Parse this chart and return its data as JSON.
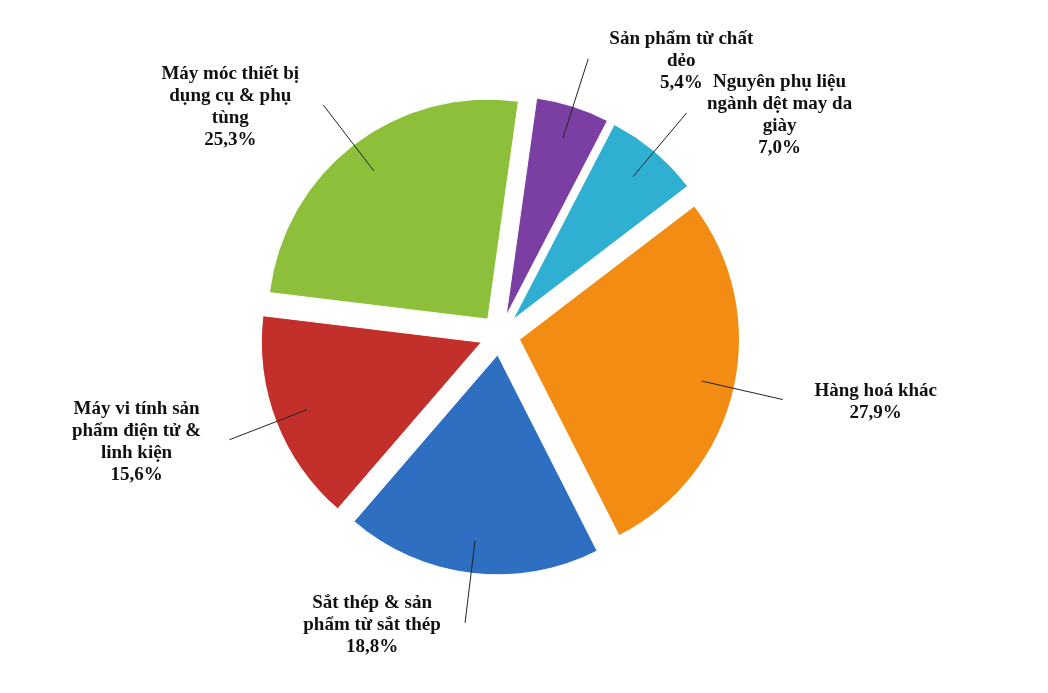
{
  "chart_data": {
    "type": "pie",
    "categories": [
      "Sản phẩm từ chất dẻo",
      "Nguyên phụ liệu ngành dệt may da giày",
      "Hàng hoá khác",
      "Sắt thép & sản phẩm từ sắt thép",
      "Máy vi tính sản phẩm điện tử & linh kiện",
      "Máy móc thiết bị dụng cụ & phụ tùng"
    ],
    "values": [
      5.4,
      7.0,
      27.9,
      18.8,
      15.6,
      25.3
    ],
    "value_labels": [
      "5,4%",
      "7,0%",
      "27,9%",
      "18,8%",
      "15,6%",
      "25,3%"
    ],
    "colors": [
      "#7b3fa3",
      "#2fb0d2",
      "#f28c12",
      "#2e6fc2",
      "#c3302b",
      "#8dbf3b"
    ]
  }
}
